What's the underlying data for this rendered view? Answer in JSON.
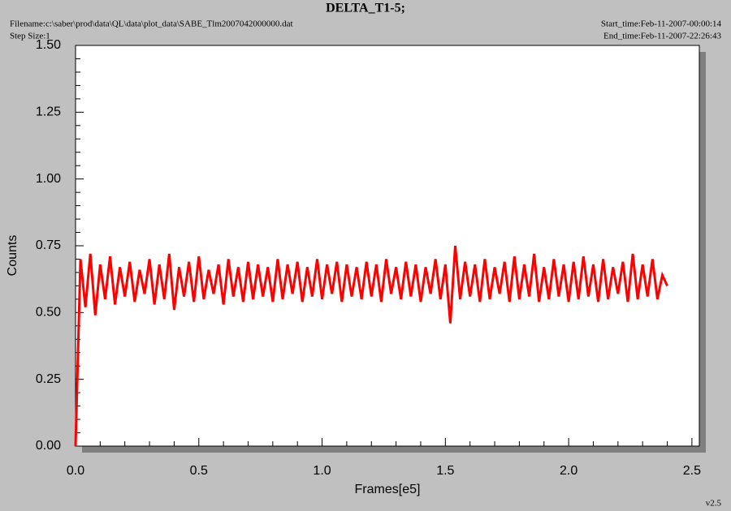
{
  "chart_data": {
    "type": "line",
    "title": "DELTA_T1-5;",
    "filename": "Filename:c:\\saber\\prod\\data\\QL\\data\\plot_data\\SABE_Tlm2007042000000.dat",
    "step_size": "Step Size:1",
    "start_time": "Start_time:Feb-11-2007-00:00:14",
    "end_time": "End_time:Feb-11-2007-22:26:43",
    "version": "v2.5",
    "x_label": "Frames[e5]",
    "y_label": "Counts",
    "xlim": [
      0,
      2.53
    ],
    "ylim": [
      0,
      1.5
    ],
    "xticks": [
      {
        "value": 0,
        "label": "0.0"
      },
      0.5,
      {
        "value": 1,
        "label": "1.0"
      },
      1.5,
      {
        "value": 2,
        "label": "2.0"
      },
      2.5
    ],
    "yticks": [
      {
        "value": 0,
        "label": "0.00"
      },
      0.25,
      {
        "value": 0.5,
        "label": "0.50"
      },
      0.75,
      {
        "value": 1,
        "label": "1.00"
      },
      1.25,
      {
        "value": 1.5,
        "label": "1.50"
      }
    ],
    "xminorticks": [
      0.1,
      0.2,
      0.3,
      0.4,
      0.6,
      0.7,
      0.8,
      0.9,
      1.1,
      1.2,
      1.3,
      1.4,
      1.6,
      1.7,
      1.8,
      1.9,
      2.1,
      2.2,
      2.3,
      2.4
    ],
    "yminorticks": [
      0.05,
      0.1,
      0.15,
      0.2,
      0.3,
      0.35,
      0.4,
      0.45,
      0.55,
      0.6,
      0.65,
      0.7,
      0.8,
      0.85,
      0.9,
      0.95,
      1.05,
      1.1,
      1.15,
      1.2,
      1.3,
      1.35,
      1.4,
      1.45
    ],
    "x": [
      0,
      0.02,
      0.04,
      0.06,
      0.08,
      0.1,
      0.12,
      0.14,
      0.16,
      0.18,
      0.2,
      0.22,
      0.24,
      0.26,
      0.28,
      0.3,
      0.32,
      0.34,
      0.36,
      0.38,
      0.4,
      0.42,
      0.44,
      0.46,
      0.48,
      0.5,
      0.52,
      0.54,
      0.56,
      0.58,
      0.6,
      0.62,
      0.64,
      0.66,
      0.68,
      0.7,
      0.72,
      0.74,
      0.76,
      0.78,
      0.8,
      0.82,
      0.84,
      0.86,
      0.88,
      0.9,
      0.92,
      0.94,
      0.96,
      0.98,
      1.0,
      1.02,
      1.04,
      1.06,
      1.08,
      1.1,
      1.12,
      1.14,
      1.16,
      1.18,
      1.2,
      1.22,
      1.24,
      1.26,
      1.28,
      1.3,
      1.32,
      1.34,
      1.36,
      1.38,
      1.4,
      1.42,
      1.44,
      1.46,
      1.48,
      1.5,
      1.52,
      1.54,
      1.56,
      1.58,
      1.6,
      1.62,
      1.64,
      1.66,
      1.68,
      1.7,
      1.72,
      1.74,
      1.76,
      1.78,
      1.8,
      1.82,
      1.84,
      1.86,
      1.88,
      1.9,
      1.92,
      1.94,
      1.96,
      1.98,
      2.0,
      2.02,
      2.04,
      2.06,
      2.08,
      2.1,
      2.12,
      2.14,
      2.16,
      2.18,
      2.2,
      2.22,
      2.24,
      2.26,
      2.28,
      2.3,
      2.32,
      2.34,
      2.36,
      2.38,
      2.4
    ],
    "series": [
      {
        "color": "#ff0000",
        "values": [
          0.0,
          0.7,
          0.52,
          0.72,
          0.49,
          0.68,
          0.55,
          0.71,
          0.53,
          0.67,
          0.56,
          0.69,
          0.54,
          0.66,
          0.57,
          0.7,
          0.53,
          0.68,
          0.55,
          0.72,
          0.51,
          0.67,
          0.56,
          0.69,
          0.54,
          0.71,
          0.55,
          0.66,
          0.57,
          0.68,
          0.53,
          0.7,
          0.56,
          0.67,
          0.54,
          0.69,
          0.55,
          0.68,
          0.56,
          0.67,
          0.54,
          0.7,
          0.55,
          0.68,
          0.57,
          0.69,
          0.54,
          0.67,
          0.56,
          0.7,
          0.55,
          0.68,
          0.57,
          0.69,
          0.54,
          0.68,
          0.56,
          0.67,
          0.55,
          0.69,
          0.56,
          0.68,
          0.54,
          0.7,
          0.57,
          0.67,
          0.55,
          0.69,
          0.56,
          0.68,
          0.54,
          0.67,
          0.57,
          0.7,
          0.55,
          0.68,
          0.46,
          0.75,
          0.55,
          0.69,
          0.56,
          0.68,
          0.54,
          0.7,
          0.55,
          0.67,
          0.57,
          0.69,
          0.54,
          0.71,
          0.55,
          0.68,
          0.56,
          0.72,
          0.54,
          0.67,
          0.55,
          0.7,
          0.56,
          0.68,
          0.54,
          0.69,
          0.55,
          0.71,
          0.56,
          0.68,
          0.54,
          0.7,
          0.55,
          0.67,
          0.57,
          0.69,
          0.54,
          0.72,
          0.55,
          0.68,
          0.56,
          0.7,
          0.55,
          0.64,
          0.6
        ]
      }
    ]
  }
}
